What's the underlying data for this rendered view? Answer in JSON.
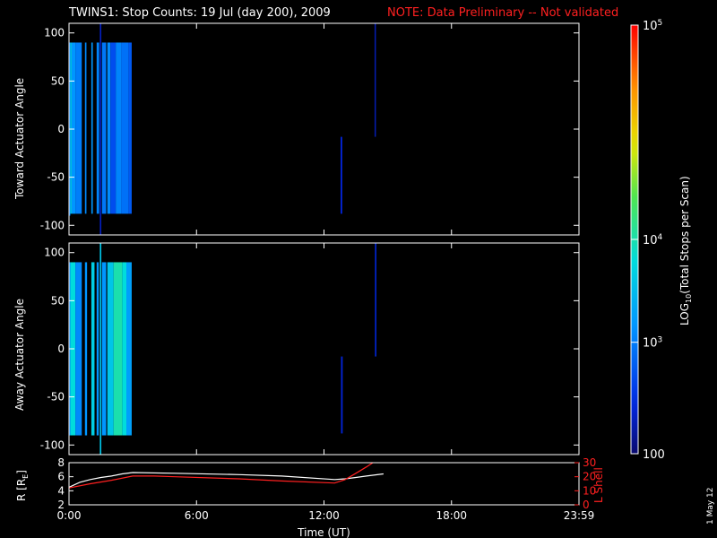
{
  "title": "TWINS1: Stop Counts: 19 Jul (day 200), 2009",
  "note": "NOTE: Data Preliminary -- Not validated",
  "note_color": "#ff2020",
  "date_stamp": "1 May 12",
  "chart_data": [
    {
      "type": "heatmap",
      "panel": "top",
      "ylabel": "Toward Actuator Angle",
      "ylim": [
        -110,
        110
      ],
      "yticks": [
        100,
        50,
        0,
        -50,
        -100
      ],
      "xlim": [
        0,
        24
      ],
      "bands": [
        {
          "t": [
            0.0,
            0.06
          ],
          "y": [
            -90,
            90
          ],
          "level": 0.25
        },
        {
          "t": [
            0.06,
            0.12
          ],
          "y": [
            -88,
            90
          ],
          "level": 0.42
        },
        {
          "t": [
            0.12,
            0.3
          ],
          "y": [
            -88,
            90
          ],
          "level": 0.3
        },
        {
          "t": [
            0.3,
            0.6
          ],
          "y": [
            -88,
            90
          ],
          "level": 0.26
        },
        {
          "t": [
            0.75,
            0.82
          ],
          "y": [
            -88,
            90
          ],
          "level": 0.28
        },
        {
          "t": [
            1.05,
            1.12
          ],
          "y": [
            -88,
            90
          ],
          "level": 0.3
        },
        {
          "t": [
            1.3,
            1.42
          ],
          "y": [
            -88,
            90
          ],
          "level": 0.27
        },
        {
          "t": [
            1.45,
            1.52
          ],
          "y": [
            -110,
            110
          ],
          "level": 0.08
        },
        {
          "t": [
            1.55,
            1.75
          ],
          "y": [
            -88,
            90
          ],
          "level": 0.25
        },
        {
          "t": [
            1.8,
            1.95
          ],
          "y": [
            -88,
            90
          ],
          "level": 0.28
        },
        {
          "t": [
            1.95,
            2.2
          ],
          "y": [
            -88,
            90
          ],
          "level": 0.18
        },
        {
          "t": [
            2.2,
            2.45
          ],
          "y": [
            -88,
            90
          ],
          "level": 0.27
        },
        {
          "t": [
            2.45,
            2.8
          ],
          "y": [
            -88,
            90
          ],
          "level": 0.24
        },
        {
          "t": [
            2.8,
            2.95
          ],
          "y": [
            -88,
            90
          ],
          "level": 0.2
        },
        {
          "t": [
            12.78,
            12.86
          ],
          "y": [
            -88,
            -8
          ],
          "level": 0.1
        },
        {
          "t": [
            14.38,
            14.44
          ],
          "y": [
            -8,
            110
          ],
          "level": 0.07
        }
      ]
    },
    {
      "type": "heatmap",
      "panel": "middle",
      "ylabel": "Away Actuator Angle",
      "ylim": [
        -110,
        110
      ],
      "yticks": [
        100,
        50,
        0,
        -50,
        -100
      ],
      "xlim": [
        0,
        24
      ],
      "bands": [
        {
          "t": [
            0.0,
            0.06
          ],
          "y": [
            -90,
            90
          ],
          "level": 0.25
        },
        {
          "t": [
            0.06,
            0.3
          ],
          "y": [
            -90,
            90
          ],
          "level": 0.45
        },
        {
          "t": [
            0.3,
            0.6
          ],
          "y": [
            -90,
            90
          ],
          "level": 0.28
        },
        {
          "t": [
            0.75,
            0.85
          ],
          "y": [
            -90,
            90
          ],
          "level": 0.3
        },
        {
          "t": [
            1.05,
            1.2
          ],
          "y": [
            -90,
            90
          ],
          "level": 0.42
        },
        {
          "t": [
            1.3,
            1.4
          ],
          "y": [
            -90,
            90
          ],
          "level": 0.3
        },
        {
          "t": [
            1.45,
            1.52
          ],
          "y": [
            -110,
            110
          ],
          "level": 0.4
        },
        {
          "t": [
            1.55,
            1.75
          ],
          "y": [
            -90,
            90
          ],
          "level": 0.3
        },
        {
          "t": [
            1.8,
            2.1
          ],
          "y": [
            -90,
            90
          ],
          "level": 0.4
        },
        {
          "t": [
            2.1,
            2.5
          ],
          "y": [
            -90,
            90
          ],
          "level": 0.5
        },
        {
          "t": [
            2.5,
            2.7
          ],
          "y": [
            -90,
            90
          ],
          "level": 0.45
        },
        {
          "t": [
            2.7,
            2.95
          ],
          "y": [
            -90,
            90
          ],
          "level": 0.32
        },
        {
          "t": [
            12.8,
            12.88
          ],
          "y": [
            -88,
            -8
          ],
          "level": 0.1
        },
        {
          "t": [
            14.4,
            14.46
          ],
          "y": [
            -8,
            110
          ],
          "level": 0.12
        }
      ]
    },
    {
      "type": "line",
      "panel": "bottom",
      "ylabel": "R [RE]",
      "y2label": "L Shell",
      "ylim": [
        2,
        8
      ],
      "yticks": [
        2,
        4,
        6,
        8
      ],
      "y2lim": [
        0,
        30
      ],
      "y2ticks": [
        0,
        10,
        20,
        30
      ],
      "xlabel": "Time (UT)",
      "xlim": [
        0,
        24
      ],
      "xticks": [
        0,
        6,
        12,
        18,
        24
      ],
      "xticklabels": [
        "0:00",
        "6:00",
        "12:00",
        "18:00",
        "23:59"
      ],
      "series": [
        {
          "axis": "left",
          "color": "#ffffff",
          "x": [
            0,
            0.5,
            1,
            1.5,
            2,
            2.5,
            3,
            5,
            8,
            10,
            12.5,
            13,
            13.5,
            14,
            14.8
          ],
          "y": [
            4.5,
            5.2,
            5.6,
            5.9,
            6.1,
            6.4,
            6.6,
            6.5,
            6.3,
            6.1,
            5.6,
            5.7,
            5.9,
            6.1,
            6.4
          ]
        },
        {
          "axis": "right",
          "color": "#ff2020",
          "x": [
            0,
            1,
            2,
            3,
            4,
            5,
            8,
            10,
            12.5,
            13,
            13.5,
            14,
            14.3
          ],
          "y": [
            12,
            15,
            17.5,
            20.5,
            20.5,
            20,
            18.5,
            17,
            15.5,
            18,
            22.5,
            27,
            30
          ]
        }
      ]
    }
  ],
  "colorbar": {
    "label": "LOG10(Total Stops per Scan)",
    "ticks": [
      {
        "label": "10",
        "exp": "5",
        "value": 1.0
      },
      {
        "label": "10",
        "exp": "4",
        "value": 0.5
      },
      {
        "label": "10",
        "exp": "3",
        "value": 0.26
      },
      {
        "label": "100",
        "exp": "",
        "value": 0.0
      }
    ]
  }
}
